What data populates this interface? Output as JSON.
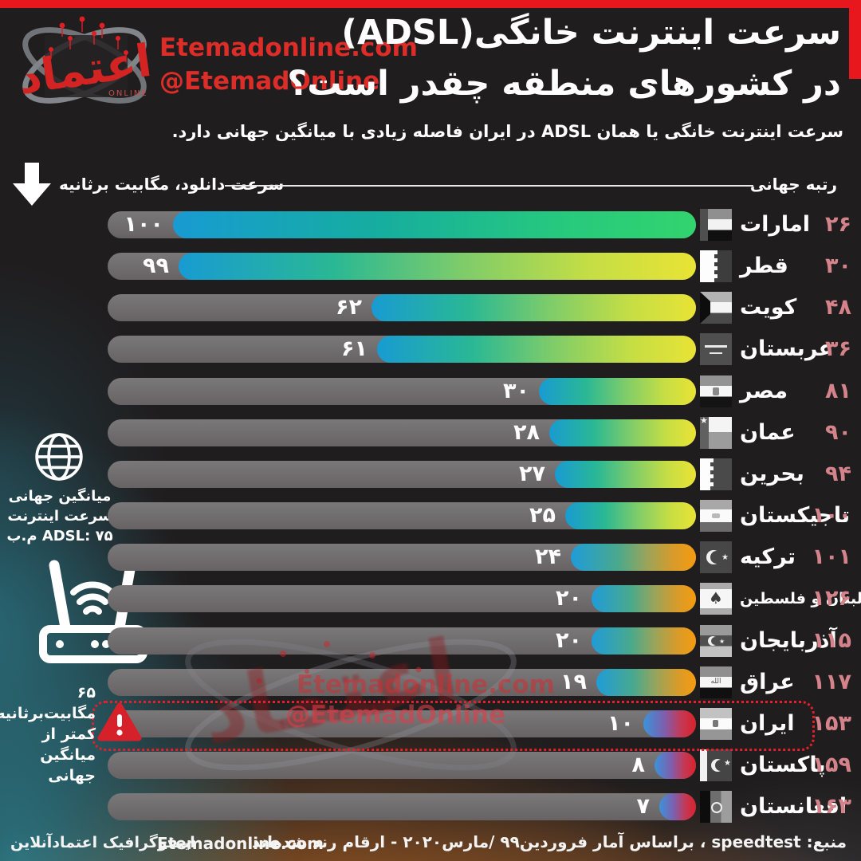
{
  "brand": {
    "site": "Etemadonline.com",
    "handle": "@EtemadOnline",
    "logo_name": "etemad-logo"
  },
  "page": {
    "title_line1": "سرعت اینترنت خانگی(ADSL)",
    "title_line2": "در کشورهای منطقه چقدر است؟",
    "subtitle": "سرعت اینترنت خانگی یا همان ADSL در ایران فاصله زیادی با میانگین جهانی دارد."
  },
  "axis": {
    "download_label": "سرعت دانلود، مگابیت برثانیه",
    "rank_label": "رتبه جهانی"
  },
  "annotations": {
    "global_average": {
      "lines": [
        "میانگین جهانی",
        "سرعت اینترنت",
        "ADSL: ۷۵ م.ب"
      ]
    },
    "iran_gap": {
      "lines": [
        "۶۵ مگابیت‌برثانیه",
        "کمتر از",
        "میانگین جهانی"
      ]
    }
  },
  "footer": {
    "source": "منبع: speedtest ، براساس آمار فروردین۹۹ /مارس۲۰۲۰ - ارقام رند شده‌اند",
    "credit": "اینفوگرافیک اعتمادآنلاین",
    "site": "Etemadonline.com"
  },
  "colors": {
    "background": "#201d1e",
    "top_bar_red": "#e8161d",
    "brand_red": "#dd2d28",
    "rank_pink": "#d4838b",
    "track_gray": "#6e6a6c",
    "highlight_border": "#e51f2b",
    "warning_red": "#d6202a",
    "bar_blue_start": "#189bd2",
    "bar_green_end": "#32d46e",
    "bar_yellow_end": "#e9e335",
    "bar_orange_end": "#f59b0f",
    "bar_red_end": "#d8222c"
  },
  "chart_data": {
    "type": "bar",
    "orientation": "horizontal-rtl",
    "title": "سرعت اینترنت خانگی(ADSL) در کشورهای منطقه چقدر است؟",
    "xlabel": "سرعت دانلود، مگابیت برثانیه",
    "rank_label": "رتبه جهانی",
    "xlim": [
      0,
      100
    ],
    "global_average_mbps": 75,
    "categories": [
      "امارات",
      "قطر",
      "کویت",
      "عربستان",
      "مصر",
      "عمان",
      "بحرین",
      "تاجیکستان",
      "ترکیه",
      "لبنان و فلسطین",
      "آذربایجان",
      "عراق",
      "ایران",
      "پاکستان",
      "افغانستان"
    ],
    "values": [
      100,
      99,
      62,
      61,
      30,
      28,
      27,
      25,
      24,
      20,
      20,
      19,
      10,
      8,
      7
    ],
    "rows": [
      {
        "name": "امارات",
        "flag": "uae",
        "value": 100,
        "value_fa": "۱۰۰",
        "world_rank": 26,
        "rank_fa": "۲۶",
        "band": "green",
        "highlight": false
      },
      {
        "name": "قطر",
        "flag": "qatar",
        "value": 99,
        "value_fa": "۹۹",
        "world_rank": 30,
        "rank_fa": "۳۰",
        "band": "yellow",
        "highlight": false
      },
      {
        "name": "کویت",
        "flag": "kuwait",
        "value": 62,
        "value_fa": "۶۲",
        "world_rank": 48,
        "rank_fa": "۴۸",
        "band": "yellow",
        "highlight": false
      },
      {
        "name": "عربستان",
        "flag": "saudi",
        "value": 61,
        "value_fa": "۶۱",
        "world_rank": 36,
        "rank_fa": "۳۶",
        "band": "yellow",
        "highlight": false
      },
      {
        "name": "مصر",
        "flag": "egypt",
        "value": 30,
        "value_fa": "۳۰",
        "world_rank": 81,
        "rank_fa": "۸۱",
        "band": "yellow",
        "highlight": false
      },
      {
        "name": "عمان",
        "flag": "oman",
        "value": 28,
        "value_fa": "۲۸",
        "world_rank": 90,
        "rank_fa": "۹۰",
        "band": "yellow",
        "highlight": false
      },
      {
        "name": "بحرین",
        "flag": "bahrain",
        "value": 27,
        "value_fa": "۲۷",
        "world_rank": 94,
        "rank_fa": "۹۴",
        "band": "yellow",
        "highlight": false
      },
      {
        "name": "تاجیکستان",
        "flag": "tajikistan",
        "value": 25,
        "value_fa": "۲۵",
        "world_rank": 100,
        "rank_fa": "۱۰۰",
        "band": "yellow",
        "highlight": false
      },
      {
        "name": "ترکیه",
        "flag": "turkey",
        "value": 24,
        "value_fa": "۲۴",
        "world_rank": 101,
        "rank_fa": "۱۰۱",
        "band": "orange",
        "highlight": false
      },
      {
        "name": "لبنان و فلسطین",
        "flag": "lebanon",
        "value": 20,
        "value_fa": "۲۰",
        "world_rank": 126,
        "rank_fa": "۱۲۶",
        "band": "orange",
        "highlight": false,
        "small_name": true
      },
      {
        "name": "آذربایجان",
        "flag": "azerbaijan",
        "value": 20,
        "value_fa": "۲۰",
        "world_rank": 115,
        "rank_fa": "۱۱۵",
        "band": "orange",
        "highlight": false
      },
      {
        "name": "عراق",
        "flag": "iraq",
        "value": 19,
        "value_fa": "۱۹",
        "world_rank": 117,
        "rank_fa": "۱۱۷",
        "band": "orange",
        "highlight": false
      },
      {
        "name": "ایران",
        "flag": "iran",
        "value": 10,
        "value_fa": "۱۰",
        "world_rank": 153,
        "rank_fa": "۱۵۳",
        "band": "red",
        "highlight": true
      },
      {
        "name": "پاکستان",
        "flag": "pakistan",
        "value": 8,
        "value_fa": "۸",
        "world_rank": 159,
        "rank_fa": "۱۵۹",
        "band": "red",
        "highlight": false
      },
      {
        "name": "افغانستان",
        "flag": "afghanistan",
        "value": 7,
        "value_fa": "۷",
        "world_rank": 163,
        "rank_fa": "۱۶۳",
        "band": "red",
        "highlight": false
      }
    ]
  }
}
